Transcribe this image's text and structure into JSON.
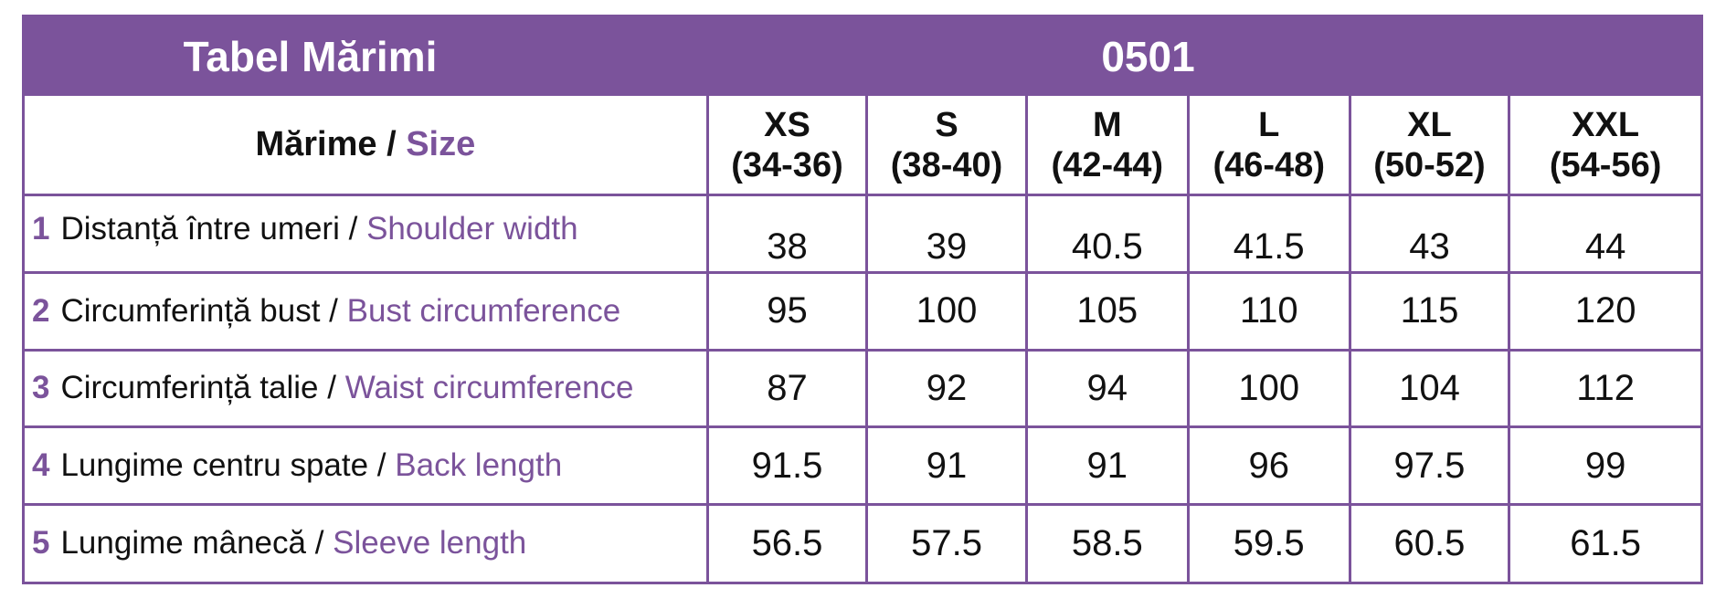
{
  "header": {
    "title": "Tabel Mărimi",
    "code": "0501"
  },
  "size_header": {
    "label_ro": "Mărime",
    "separator": " / ",
    "label_en": "Size"
  },
  "sizes": [
    {
      "name": "XS",
      "range": "(34-36)"
    },
    {
      "name": "S",
      "range": "(38-40)"
    },
    {
      "name": "M",
      "range": "(42-44)"
    },
    {
      "name": "L",
      "range": "(46-48)"
    },
    {
      "name": "XL",
      "range": "(50-52)"
    },
    {
      "name": "XXL",
      "range": "(54-56)"
    }
  ],
  "rows": [
    {
      "num": "1",
      "label_ro": "Distanță între umeri",
      "sep": " / ",
      "label_en": "Shoulder width",
      "values": [
        "38",
        "39",
        "40.5",
        "41.5",
        "43",
        "44"
      ]
    },
    {
      "num": "2",
      "label_ro": "Circumferință bust",
      "sep": " / ",
      "label_en": "Bust circumference",
      "values": [
        "95",
        "100",
        "105",
        "110",
        "115",
        "120"
      ]
    },
    {
      "num": "3",
      "label_ro": "Circumferință talie",
      "sep": " / ",
      "label_en": "Waist circumference",
      "values": [
        "87",
        "92",
        "94",
        "100",
        "104",
        "112"
      ]
    },
    {
      "num": "4",
      "label_ro": "Lungime centru spate",
      "sep": " / ",
      "label_en": "Back length",
      "values": [
        "91.5",
        "91",
        "91",
        "96",
        "97.5",
        "99"
      ]
    },
    {
      "num": "5",
      "label_ro": "Lungime mânecă",
      "sep": " / ",
      "label_en": "Sleeve length",
      "values": [
        "56.5",
        "57.5",
        "58.5",
        "59.5",
        "60.5",
        "61.5"
      ]
    }
  ],
  "colors": {
    "accent": "#7b539b",
    "text": "#111111",
    "background": "#ffffff"
  }
}
